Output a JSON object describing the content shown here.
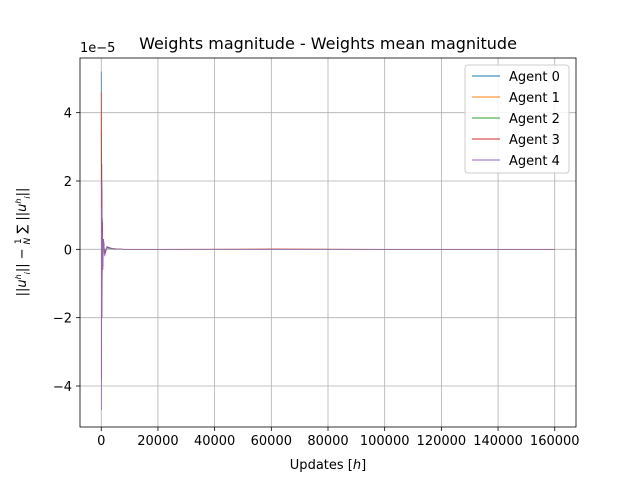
{
  "chart_data": {
    "type": "line",
    "title": "Weights magnitude - Weights mean magnitude",
    "xlabel": "Updates [h]",
    "ylabel": "||u_i^h|| - (1/N) Σ_{i=1}^{N} ||u_i^h||",
    "y_offset_label": "1e−5",
    "xlim": [
      -7500,
      167500
    ],
    "ylim": [
      -5.2,
      5.6
    ],
    "x_ticks": [
      0,
      20000,
      40000,
      60000,
      80000,
      100000,
      120000,
      140000,
      160000
    ],
    "x_tick_labels": [
      "0",
      "20000",
      "40000",
      "60000",
      "80000",
      "100000",
      "120000",
      "140000",
      "160000"
    ],
    "y_ticks": [
      -4,
      -2,
      0,
      2,
      4
    ],
    "y_tick_labels": [
      "−4",
      "−2",
      "0",
      "2",
      "4"
    ],
    "grid": true,
    "legend_position": "top-right",
    "series": [
      {
        "name": "Agent 0",
        "color": "#1f77b4",
        "x": [
          0,
          100,
          200,
          300,
          400,
          600,
          800,
          1200,
          2000,
          4000,
          8000,
          20000,
          60000,
          100000,
          140000,
          160000
        ],
        "y": [
          5.2,
          -1.6,
          2.5,
          -0.8,
          0.9,
          -0.3,
          0.3,
          -0.1,
          0.08,
          0.02,
          0.0,
          0.0,
          0.0,
          0.0,
          0.0,
          0.0
        ]
      },
      {
        "name": "Agent 1",
        "color": "#ff7f0e",
        "x": [
          0,
          100,
          200,
          300,
          400,
          600,
          800,
          1200,
          2000,
          4000,
          8000,
          20000,
          60000,
          100000,
          140000,
          160000
        ],
        "y": [
          4.0,
          -3.0,
          1.5,
          -1.2,
          0.6,
          -0.4,
          0.25,
          -0.1,
          0.05,
          0.02,
          0.0,
          0.0,
          0.0,
          0.0,
          0.0,
          0.0
        ]
      },
      {
        "name": "Agent 2",
        "color": "#2ca02c",
        "x": [
          0,
          100,
          200,
          300,
          400,
          600,
          800,
          1200,
          2000,
          4000,
          8000,
          20000,
          60000,
          100000,
          140000,
          160000
        ],
        "y": [
          3.5,
          -2.5,
          1.8,
          -1.0,
          0.7,
          -0.3,
          0.2,
          -0.08,
          0.04,
          0.01,
          0.0,
          0.0,
          0.0,
          0.0,
          0.0,
          0.0
        ]
      },
      {
        "name": "Agent 3",
        "color": "#d62728",
        "x": [
          0,
          100,
          200,
          300,
          400,
          600,
          800,
          1200,
          2000,
          4000,
          8000,
          20000,
          60000,
          100000,
          140000,
          160000
        ],
        "y": [
          4.6,
          -3.8,
          2.0,
          -1.5,
          0.8,
          -0.5,
          0.3,
          -0.15,
          0.06,
          0.02,
          0.0,
          0.0,
          0.01,
          0.0,
          0.0,
          0.0
        ]
      },
      {
        "name": "Agent 4",
        "color": "#9467bd",
        "x": [
          0,
          100,
          200,
          300,
          400,
          600,
          800,
          1200,
          2000,
          4000,
          8000,
          20000,
          60000,
          100000,
          140000,
          160000
        ],
        "y": [
          2.0,
          -4.7,
          1.2,
          -2.0,
          0.5,
          -0.6,
          0.3,
          -0.2,
          0.05,
          0.02,
          0.0,
          0.0,
          0.0,
          0.0,
          0.0,
          0.0
        ]
      }
    ]
  }
}
